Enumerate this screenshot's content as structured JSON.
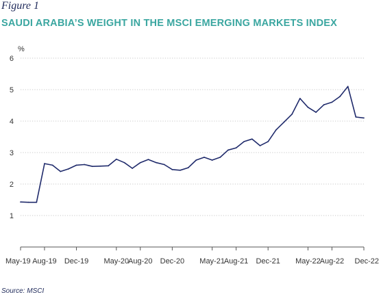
{
  "figure_label": "Figure 1",
  "source": "Source: MSCI",
  "chart_data": {
    "type": "line",
    "title": "SAUDI ARABIA’S WEIGHT IN THE MSCI EMERGING MARKETS INDEX",
    "ylabel": "%",
    "xlabel": "",
    "ylim": [
      0,
      6
    ],
    "yticks": [
      1,
      2,
      3,
      4,
      5,
      6
    ],
    "grid": "horizontal-dotted",
    "line_color": "#1f2a6b",
    "x_tick_labels": [
      "May-19",
      "Aug-19",
      "Dec-19",
      "May-20",
      "Aug-20",
      "Dec-20",
      "May-21",
      "Aug-21",
      "Dec-21",
      "May-22",
      "Aug-22",
      "Dec-22"
    ],
    "x_tick_index": [
      0,
      3,
      7,
      12,
      15,
      19,
      24,
      27,
      31,
      36,
      39,
      43
    ],
    "series": [
      {
        "values": [
          1.43,
          1.42,
          1.42,
          2.65,
          2.6,
          2.4,
          2.48,
          2.6,
          2.62,
          2.56,
          2.57,
          2.58,
          2.79,
          2.68,
          2.5,
          2.68,
          2.78,
          2.68,
          2.62,
          2.46,
          2.44,
          2.52,
          2.76,
          2.85,
          2.76,
          2.85,
          3.08,
          3.15,
          3.35,
          3.43,
          3.22,
          3.35,
          3.72,
          3.97,
          4.22,
          4.72,
          4.44,
          4.28,
          4.52,
          4.6,
          4.78,
          5.1,
          4.13,
          4.1
        ]
      }
    ]
  }
}
